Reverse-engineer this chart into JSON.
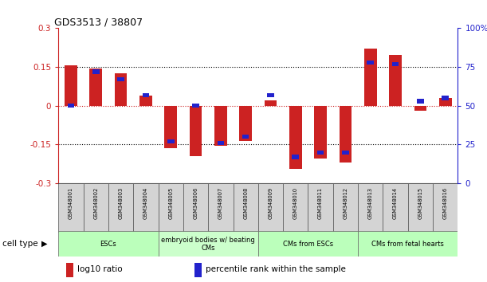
{
  "title": "GDS3513 / 38807",
  "samples": [
    "GSM348001",
    "GSM348002",
    "GSM348003",
    "GSM348004",
    "GSM348005",
    "GSM348006",
    "GSM348007",
    "GSM348008",
    "GSM348009",
    "GSM348010",
    "GSM348011",
    "GSM348012",
    "GSM348013",
    "GSM348014",
    "GSM348015",
    "GSM348016"
  ],
  "log10_ratio": [
    0.155,
    0.145,
    0.125,
    0.04,
    -0.165,
    -0.195,
    -0.155,
    -0.135,
    0.02,
    -0.245,
    -0.205,
    -0.22,
    0.22,
    0.195,
    -0.02,
    0.03
  ],
  "percentile_rank": [
    50,
    72,
    67,
    57,
    27,
    50,
    26,
    30,
    57,
    17,
    20,
    20,
    78,
    77,
    53,
    55
  ],
  "red_color": "#cc2222",
  "blue_color": "#2222cc",
  "bar_width": 0.5,
  "ylim_left": [
    -0.3,
    0.3
  ],
  "ylim_right": [
    0,
    100
  ],
  "yticks_left": [
    -0.3,
    -0.15,
    0.0,
    0.15,
    0.3
  ],
  "yticks_right": [
    0,
    25,
    50,
    75,
    100
  ],
  "ytick_labels_left": [
    "-0.3",
    "-0.15",
    "0",
    "0.15",
    "0.3"
  ],
  "ytick_labels_right": [
    "0",
    "25",
    "50",
    "75",
    "100%"
  ],
  "hlines": [
    -0.15,
    0.0,
    0.15
  ],
  "cell_type_groups": [
    {
      "label": "ESCs",
      "start": 0,
      "end": 3,
      "color": "#bbffbb"
    },
    {
      "label": "embryoid bodies w/ beating\nCMs",
      "start": 4,
      "end": 7,
      "color": "#ccffcc"
    },
    {
      "label": "CMs from ESCs",
      "start": 8,
      "end": 11,
      "color": "#bbffbb"
    },
    {
      "label": "CMs from fetal hearts",
      "start": 12,
      "end": 15,
      "color": "#bbffbb"
    }
  ],
  "legend_red": "log10 ratio",
  "legend_blue": "percentile rank within the sample",
  "cell_type_label": "cell type"
}
